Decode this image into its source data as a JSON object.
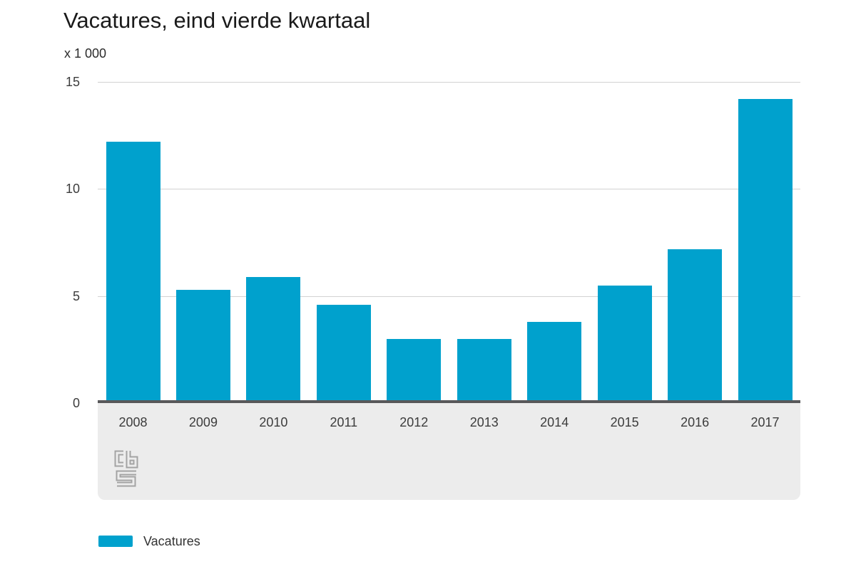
{
  "chart": {
    "title": "Vacatures, eind vierde kwartaal",
    "unit_label": "x 1 000"
  },
  "chart_data": {
    "type": "bar",
    "title": "Vacatures, eind vierde kwartaal",
    "subtitle": "",
    "unit_label": "x 1 000",
    "xlabel": "",
    "ylabel": "x 1 000",
    "categories": [
      "2008",
      "2009",
      "2010",
      "2011",
      "2012",
      "2013",
      "2014",
      "2015",
      "2016",
      "2017"
    ],
    "series": [
      {
        "name": "Vacatures",
        "values": [
          12.2,
          5.3,
          5.9,
          4.6,
          3.0,
          3.0,
          3.8,
          5.5,
          7.2,
          14.2
        ]
      }
    ],
    "ylim": [
      0,
      15
    ],
    "yticks": [
      0,
      5,
      10,
      15
    ],
    "grid": true,
    "legend_position": "bottom-left",
    "colors": {
      "bar": "#00a1cd",
      "axis_line": "#58585a",
      "axis_band": "#ececec",
      "gridline": "#d2d2d2",
      "title_text": "#1a1a1a",
      "label_text": "#3c3c3c",
      "logo": "#a3a3a3"
    }
  },
  "legend": {
    "items": [
      {
        "label": "Vacatures",
        "color": "#00a1cd"
      }
    ]
  },
  "icons": {
    "logo": "cbs-logo"
  }
}
